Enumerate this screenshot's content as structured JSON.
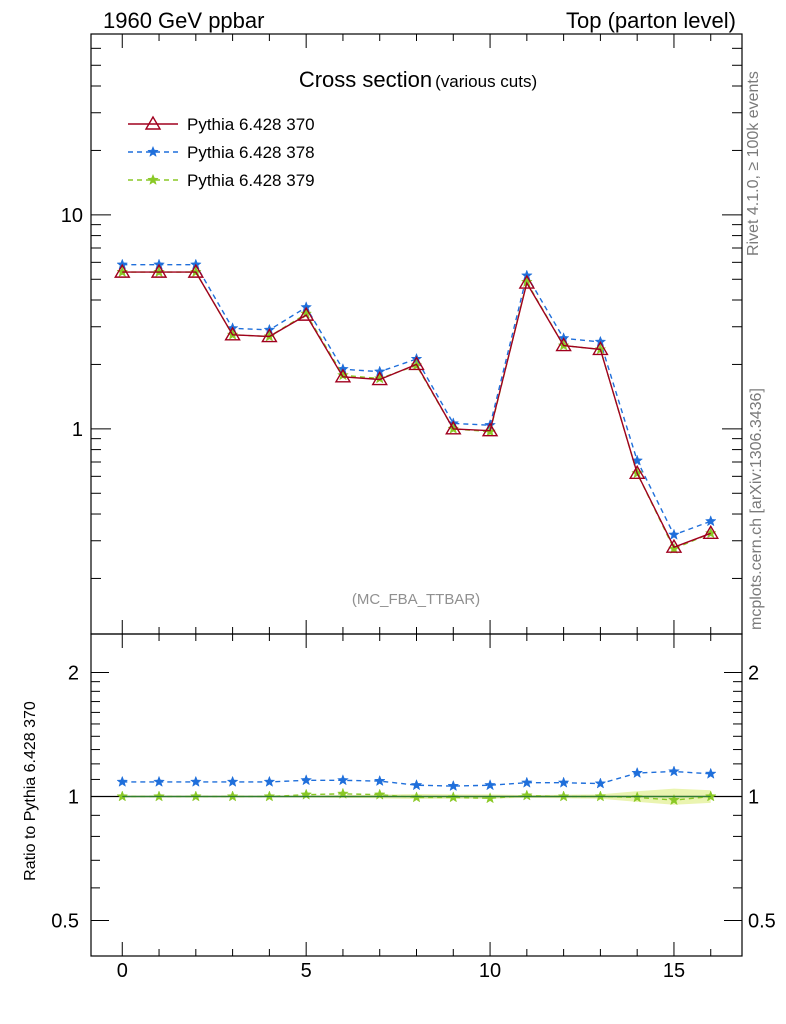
{
  "header": {
    "left": "1960 GeV ppbar",
    "right": "Top (parton level)"
  },
  "side_labels": {
    "rivet": "Rivet 4.1.0, ≥ 100k events",
    "mcplots": "mcplots.cern.ch [arXiv:1306.3436]"
  },
  "chart_data": [
    {
      "type": "line",
      "title": "Cross section",
      "subtitle": "(various cuts)",
      "watermark": "(MC_FBA_TTBAR)",
      "xlabel": "",
      "ylabel": "",
      "yscale": "log",
      "xlim": [
        -0.85,
        16.85
      ],
      "ylim": [
        0.11,
        70
      ],
      "yticks": [
        1,
        10
      ],
      "ytick_labels": [
        "1",
        "10"
      ],
      "legend_position": "top-left",
      "x": [
        0,
        1,
        2,
        3,
        4,
        5,
        6,
        7,
        8,
        9,
        10,
        11,
        12,
        13,
        14,
        15,
        16
      ],
      "series": [
        {
          "name": "Pythia 6.428 370",
          "color": "#a0001e",
          "style": "solid",
          "marker": "triangle",
          "values": [
            5.4,
            5.4,
            5.4,
            2.75,
            2.7,
            3.4,
            1.75,
            1.7,
            2.0,
            1.0,
            0.98,
            4.8,
            2.45,
            2.35,
            0.62,
            0.28,
            0.325
          ]
        },
        {
          "name": "Pythia 6.428 378",
          "color": "#1f6fdb",
          "style": "dashed",
          "marker": "star",
          "values": [
            5.85,
            5.85,
            5.85,
            2.95,
            2.9,
            3.7,
            1.9,
            1.85,
            2.12,
            1.06,
            1.04,
            5.2,
            2.65,
            2.55,
            0.71,
            0.32,
            0.37
          ]
        },
        {
          "name": "Pythia 6.428 379",
          "color": "#8ac926",
          "style": "dashed",
          "marker": "star",
          "values": [
            5.4,
            5.4,
            5.4,
            2.75,
            2.7,
            3.45,
            1.78,
            1.72,
            1.98,
            1.0,
            0.97,
            4.85,
            2.45,
            2.35,
            0.62,
            0.275,
            0.325
          ]
        }
      ]
    },
    {
      "type": "line",
      "title": "",
      "xlabel": "",
      "ylabel": "Ratio to Pythia 6.428 370",
      "yscale": "log",
      "xlim": [
        -0.85,
        16.85
      ],
      "ylim": [
        0.41,
        2.48
      ],
      "yticks": [
        0.5,
        1,
        2
      ],
      "ytick_labels": [
        "0.5",
        "1",
        "2"
      ],
      "xticks": [
        0,
        5,
        10,
        15
      ],
      "xtick_labels": [
        "0",
        "5",
        "10",
        "15"
      ],
      "reference_band_color": "#eaf4b0",
      "x": [
        0,
        1,
        2,
        3,
        4,
        5,
        6,
        7,
        8,
        9,
        10,
        11,
        12,
        13,
        14,
        15,
        16
      ],
      "series": [
        {
          "name": "Pythia 6.428 370",
          "color": "#2e7d32",
          "style": "solid",
          "marker": "none",
          "values": [
            1,
            1,
            1,
            1,
            1,
            1,
            1,
            1,
            1,
            1,
            1,
            1,
            1,
            1,
            1,
            1,
            1
          ]
        },
        {
          "name": "Pythia 6.428 378",
          "color": "#1f6fdb",
          "style": "dashed",
          "marker": "star",
          "values": [
            1.085,
            1.085,
            1.085,
            1.085,
            1.085,
            1.095,
            1.095,
            1.09,
            1.065,
            1.06,
            1.065,
            1.08,
            1.08,
            1.075,
            1.14,
            1.15,
            1.135
          ]
        },
        {
          "name": "Pythia 6.428 379",
          "color": "#8ac926",
          "style": "dashed",
          "marker": "star",
          "values": [
            1.0,
            1.0,
            1.0,
            1.0,
            1.0,
            1.01,
            1.015,
            1.01,
            0.995,
            0.995,
            0.99,
            1.005,
            1.0,
            1.0,
            0.995,
            0.98,
            1.0
          ]
        }
      ]
    }
  ]
}
